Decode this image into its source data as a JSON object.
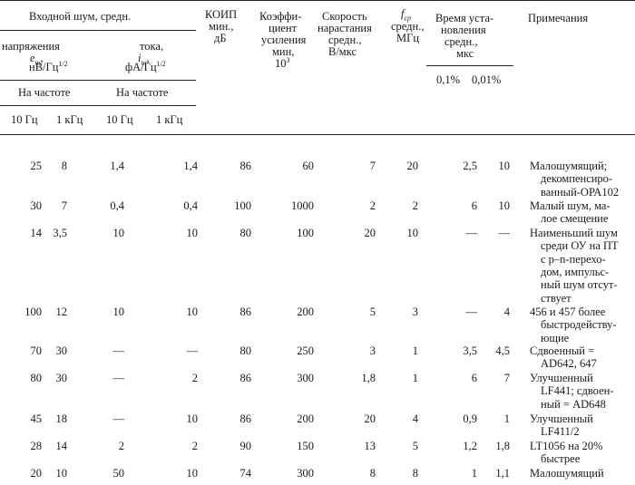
{
  "header": {
    "noise_group": "Входной шум, средн.",
    "voltage_label": "напряжения",
    "voltage_symbol": "e",
    "voltage_sub": "ш",
    "voltage_unit": "нВ/Гц",
    "voltage_pow": "1/2",
    "current_label": "тока,",
    "current_symbol": "i",
    "current_sub": "ш",
    "current_unit": "фА/Гц",
    "current_pow": "1/2",
    "at_freq_1": "На частоте",
    "at_freq_2": "На частоте",
    "f1": "10 Гц",
    "f2": "1 кГц",
    "f3": "10 Гц",
    "f4": "1 кГц",
    "cmrr_1": "КОИП",
    "cmrr_2": "мин.,",
    "cmrr_3": "дБ",
    "gain_1": "Коэффи-",
    "gain_2": "циент",
    "gain_3": "усиления",
    "gain_4": "мин,",
    "gain_5": "10",
    "gain_5_pow": "3",
    "slew_1": "Скорость",
    "slew_2": "нарастания",
    "slew_3": "средн.,",
    "slew_4": "В/мкс",
    "fcp_symbol": "f",
    "fcp_sub": "ср",
    "fcp_2": "средн.,",
    "fcp_3": "МГц",
    "settle_1": "Время уста-",
    "settle_2": "новления",
    "settle_3": "средн.,",
    "settle_4": "мкс",
    "settle_a": "0,1%",
    "settle_b": "0,01%",
    "notes": "Примечания"
  },
  "rows": [
    {
      "v10": "25",
      "v1k": "8",
      "i10": "1,4",
      "i1k": "1,4",
      "cmrr": "86",
      "gain": "60",
      "slew": "7",
      "fcp": "20",
      "s1": "2,5",
      "s2": "10",
      "note": [
        "Малошумящий;",
        "декомпенсиро-",
        "ванный-ОРА102"
      ]
    },
    {
      "v10": "30",
      "v1k": "7",
      "i10": "0,4",
      "i1k": "0,4",
      "cmrr": "100",
      "gain": "1000",
      "slew": "2",
      "fcp": "2",
      "s1": "6",
      "s2": "10",
      "note": [
        "Малый шум, ма-",
        "лое смещение"
      ]
    },
    {
      "v10": "14",
      "v1k": "3,5",
      "i10": "10",
      "i1k": "10",
      "cmrr": "80",
      "gain": "100",
      "slew": "20",
      "fcp": "10",
      "s1": "—",
      "s2": "—",
      "note": [
        "Наименьший шум",
        "среди ОУ на ПТ",
        "с    p–n-перехо-",
        "дом, импульс-",
        "ный шум отсут-",
        "ствует"
      ]
    },
    {
      "v10": "100",
      "v1k": "12",
      "i10": "10",
      "i1k": "10",
      "cmrr": "86",
      "gain": "200",
      "slew": "5",
      "fcp": "3",
      "s1": "—",
      "s2": "4",
      "note": [
        "456 и 457 более",
        "быстродейству-",
        "ющие"
      ]
    },
    {
      "v10": "70",
      "v1k": "30",
      "i10": "—",
      "i1k": "—",
      "cmrr": "80",
      "gain": "250",
      "slew": "3",
      "fcp": "1",
      "s1": "3,5",
      "s2": "4,5",
      "note": [
        "Сдвоенный =",
        "AD642, 647"
      ]
    },
    {
      "v10": "80",
      "v1k": "30",
      "i10": "—",
      "i1k": "2",
      "cmrr": "86",
      "gain": "300",
      "slew": "1,8",
      "fcp": "1",
      "s1": "6",
      "s2": "7",
      "note": [
        "Улучшенный",
        "LF441; сдвоен-",
        "ный = AD648"
      ]
    },
    {
      "v10": "45",
      "v1k": "18",
      "i10": "—",
      "i1k": "10",
      "cmrr": "86",
      "gain": "200",
      "slew": "20",
      "fcp": "4",
      "s1": "0,9",
      "s2": "1",
      "note": [
        "Улучшенный",
        "LF411/2"
      ]
    },
    {
      "v10": "28",
      "v1k": "14",
      "i10": "2",
      "i1k": "2",
      "cmrr": "90",
      "gain": "150",
      "slew": "13",
      "fcp": "5",
      "s1": "1,2",
      "s2": "1,8",
      "note": [
        "LT1056  на  20%",
        "быстрее"
      ]
    },
    {
      "v10": "20",
      "v1k": "10",
      "i10": "50",
      "i1k": "10",
      "cmrr": "74",
      "gain": "300",
      "slew": "8",
      "fcp": "8",
      "s1": "1",
      "s2": "1,1",
      "note": [
        "Малошумящий"
      ]
    }
  ]
}
